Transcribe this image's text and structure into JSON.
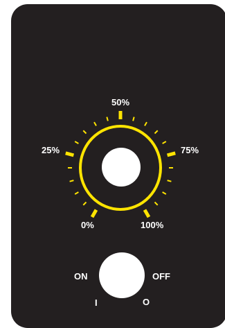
{
  "dial": {
    "labels": {
      "p0": "0%",
      "p25": "25%",
      "p50": "50%",
      "p75": "75%",
      "p100": "100%"
    },
    "accent_color": "#ffe400",
    "panel_color": "#231f20",
    "knob_color": "#ffffff",
    "tick_count": 21,
    "sweep_degrees": 300
  },
  "switch": {
    "on_label": "ON",
    "off_label": "OFF",
    "on_symbol": "I",
    "off_symbol": "O"
  }
}
